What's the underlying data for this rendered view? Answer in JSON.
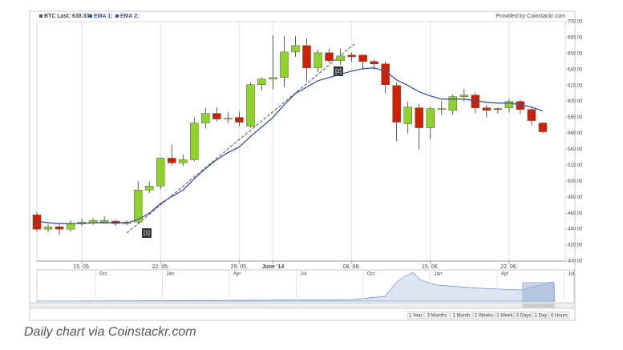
{
  "chart_data": {
    "type": "candlestick",
    "legend": [
      "BTC Last: 638.33",
      "EMA 1:",
      "EMA 2:"
    ],
    "credit": "Provided by Coinstackr.com",
    "x": [
      "2014-05-11",
      "2014-05-12",
      "2014-05-13",
      "2014-05-14",
      "2014-05-15",
      "2014-05-16",
      "2014-05-17",
      "2014-05-18",
      "2014-05-19",
      "2014-05-20",
      "2014-05-21",
      "2014-05-22",
      "2014-05-23",
      "2014-05-24",
      "2014-05-25",
      "2014-05-26",
      "2014-05-27",
      "2014-05-28",
      "2014-05-29",
      "2014-05-30",
      "2014-05-31",
      "2014-06-01",
      "2014-06-02",
      "2014-06-03",
      "2014-06-04",
      "2014-06-05",
      "2014-06-06",
      "2014-06-07",
      "2014-06-08",
      "2014-06-09",
      "2014-06-10",
      "2014-06-11",
      "2014-06-12",
      "2014-06-13",
      "2014-06-14",
      "2014-06-15",
      "2014-06-16",
      "2014-06-17",
      "2014-06-18",
      "2014-06-19",
      "2014-06-20",
      "2014-06-21",
      "2014-06-22",
      "2014-06-23",
      "2014-06-24",
      "2014-06-25"
    ],
    "open": [
      458,
      440,
      443,
      440,
      447,
      448,
      449,
      450,
      447,
      449,
      489,
      494,
      529,
      523,
      527,
      573,
      585,
      578,
      580,
      569,
      621,
      628,
      630,
      662,
      670,
      642,
      661,
      651,
      658,
      658,
      650,
      647,
      620,
      572,
      592,
      567,
      590,
      589,
      606,
      608,
      592,
      591,
      592,
      600,
      590,
      573
    ],
    "high": [
      461,
      446,
      446,
      451,
      453,
      454,
      456,
      452,
      451,
      500,
      500,
      530,
      546,
      534,
      580,
      592,
      593,
      587,
      587,
      624,
      630,
      683,
      682,
      682,
      679,
      665,
      666,
      666,
      661,
      659,
      652,
      650,
      624,
      600,
      597,
      593,
      600,
      609,
      616,
      611,
      596,
      593,
      603,
      602,
      592,
      574
    ],
    "low": [
      437,
      436,
      433,
      437,
      444,
      445,
      447,
      444,
      445,
      447,
      485,
      490,
      520,
      519,
      525,
      566,
      575,
      573,
      569,
      567,
      614,
      615,
      618,
      656,
      625,
      637,
      648,
      646,
      650,
      640,
      640,
      610,
      550,
      560,
      540,
      553,
      583,
      583,
      600,
      585,
      580,
      585,
      586,
      584,
      570,
      560
    ],
    "close": [
      440,
      443,
      440,
      447,
      449,
      451,
      451,
      447,
      449,
      489,
      494,
      529,
      523,
      527,
      573,
      585,
      578,
      579,
      574,
      621,
      628,
      630,
      662,
      670,
      642,
      661,
      651,
      657,
      656,
      650,
      647,
      621,
      574,
      593,
      567,
      591,
      591,
      606,
      608,
      592,
      589,
      590,
      600,
      590,
      576,
      562
    ],
    "up_color": "#8fd22d",
    "down_color": "#cc2200",
    "ema": {
      "color": "#3a53a4",
      "values": [
        450,
        448,
        447,
        447,
        447,
        448,
        448,
        448,
        448,
        452,
        460,
        472,
        481,
        489,
        503,
        516,
        527,
        536,
        543,
        556,
        568,
        580,
        596,
        610,
        618,
        626,
        630,
        634,
        638,
        641,
        642,
        638,
        627,
        620,
        612,
        607,
        603,
        603,
        603,
        601,
        599,
        598,
        598,
        596,
        593,
        588
      ]
    },
    "xlim": [
      "2014-05-11",
      "2014-06-27"
    ],
    "xticks": [
      {
        "value": "2014-05-15",
        "label": "15. 05."
      },
      {
        "value": "2014-05-22",
        "label": "22. 05."
      },
      {
        "value": "2014-05-29",
        "label": "29. 05."
      },
      {
        "value": "2014-06-01",
        "label": "June '14"
      },
      {
        "value": "2014-06-08",
        "label": "08. 06."
      },
      {
        "value": "2014-06-15",
        "label": "15. 06."
      },
      {
        "value": "2014-06-22",
        "label": "22. 06."
      }
    ],
    "ylim": [
      400,
      700
    ],
    "yticks": [
      {
        "value": 700,
        "label": "700.00"
      },
      {
        "value": 680,
        "label": "680.00"
      },
      {
        "value": 660,
        "label": "660.00"
      },
      {
        "value": 640,
        "label": "640.00"
      },
      {
        "value": 620,
        "label": "620.00"
      },
      {
        "value": 600,
        "label": "600.00"
      },
      {
        "value": 580,
        "label": "580.00"
      },
      {
        "value": 560,
        "label": "560.00"
      },
      {
        "value": 540,
        "label": "540.00"
      },
      {
        "value": 520,
        "label": "520.00"
      },
      {
        "value": 500,
        "label": "500.00"
      },
      {
        "value": 480,
        "label": "480.00"
      },
      {
        "value": 460,
        "label": "460.00"
      },
      {
        "value": 440,
        "label": "440.00"
      },
      {
        "value": 420,
        "label": "420.00"
      },
      {
        "value": 400,
        "label": "400.00"
      }
    ],
    "grid": "x",
    "annotations": [
      "[1]",
      "[2]"
    ],
    "navigator_labels": [
      "Oct",
      "Jan",
      "Apr",
      "Jul",
      "Oct",
      "Jan",
      "Apr",
      "Jul"
    ],
    "range_buttons": [
      "1 Year",
      "3 Months",
      "1 Month",
      "2 Weeks",
      "1 Week",
      "3 Days",
      "1 Day",
      "6 Hours"
    ]
  },
  "caption": "Daily chart via Coinstackr.com"
}
